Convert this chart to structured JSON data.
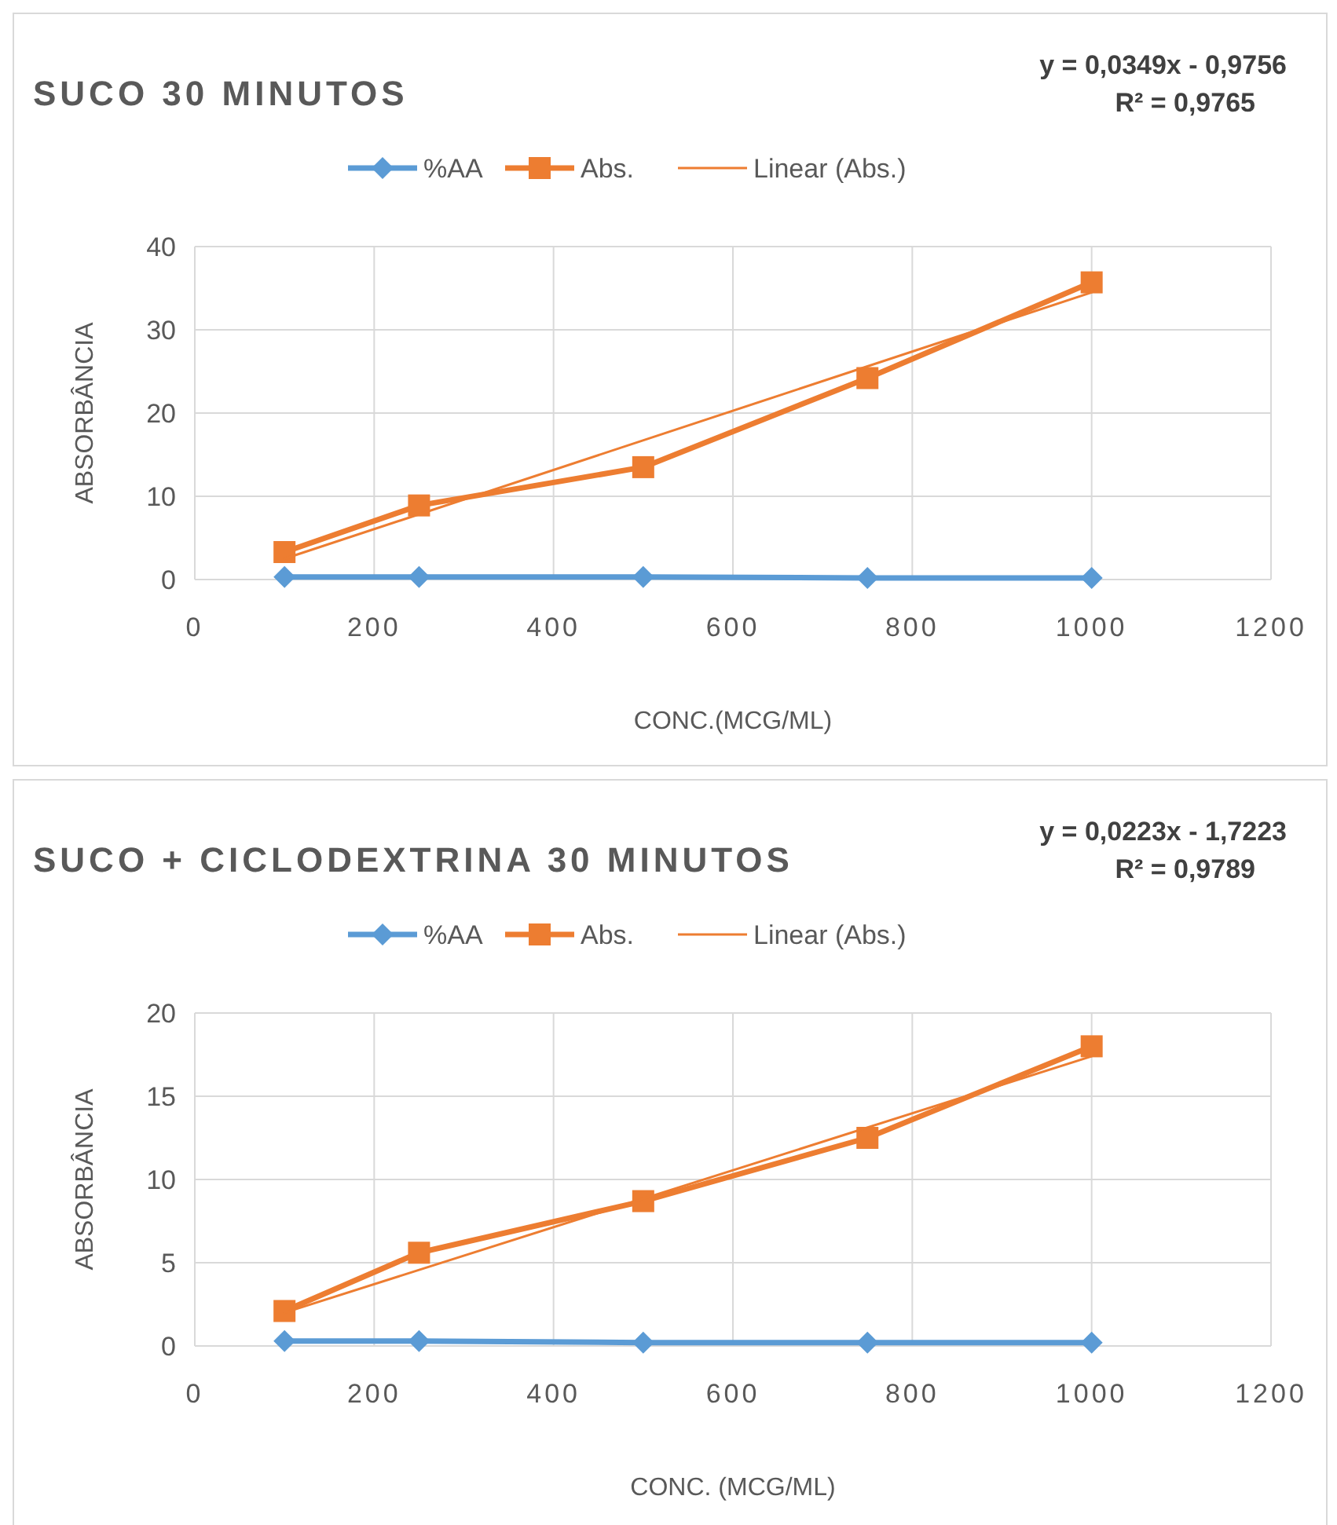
{
  "chart_data": [
    {
      "type": "line",
      "title": "SUCO 30 MINUTOS",
      "xlabel": "CONC.(MCG/ML)",
      "ylabel": "ABSORBÂNCIA",
      "annotations": [
        "y = 0,0349x - 0,9756",
        "R² = 0,9765"
      ],
      "xlim": [
        0,
        1200
      ],
      "xticks": [
        0,
        200,
        400,
        600,
        800,
        1000,
        1200
      ],
      "ylim": [
        0,
        40
      ],
      "yticks": [
        0,
        10,
        20,
        30,
        40
      ],
      "grid": true,
      "legend": "top",
      "series": [
        {
          "name": "%AA",
          "color": "#5b9bd5",
          "marker": "diamond",
          "x": [
            100,
            250,
            500,
            750,
            1000
          ],
          "values": [
            0.3,
            0.3,
            0.3,
            0.2,
            0.2
          ]
        },
        {
          "name": "Abs.",
          "color": "#ed7d31",
          "marker": "square",
          "x": [
            100,
            250,
            500,
            750,
            1000
          ],
          "values": [
            3.3,
            8.9,
            13.5,
            24.2,
            35.7
          ]
        },
        {
          "name": "Linear (Abs.)",
          "color": "#ed7d31",
          "marker": "none",
          "x": [
            100,
            1000
          ],
          "values": [
            2.5,
            34.5
          ]
        }
      ]
    },
    {
      "type": "line",
      "title": "SUCO + CICLODEXTRINA 30 MINUTOS",
      "xlabel": "CONC. (MCG/ML)",
      "ylabel": "ABSORBÂNCIA",
      "annotations": [
        "y = 0,0223x - 1,7223",
        "R² = 0,9789"
      ],
      "xlim": [
        0,
        1200
      ],
      "xticks": [
        0,
        200,
        400,
        600,
        800,
        1000,
        1200
      ],
      "ylim": [
        0,
        20
      ],
      "yticks": [
        0,
        5,
        10,
        15,
        20
      ],
      "grid": true,
      "legend": "top",
      "series": [
        {
          "name": "%AA",
          "color": "#5b9bd5",
          "marker": "diamond",
          "x": [
            100,
            250,
            500,
            750,
            1000
          ],
          "values": [
            0.3,
            0.3,
            0.2,
            0.2,
            0.2
          ]
        },
        {
          "name": "Abs.",
          "color": "#ed7d31",
          "marker": "square",
          "x": [
            100,
            250,
            500,
            750,
            1000
          ],
          "values": [
            2.1,
            5.6,
            8.7,
            12.5,
            18.0
          ]
        },
        {
          "name": "Linear (Abs.)",
          "color": "#ed7d31",
          "marker": "none",
          "x": [
            100,
            1000
          ],
          "values": [
            2.0,
            17.4
          ]
        }
      ]
    }
  ]
}
